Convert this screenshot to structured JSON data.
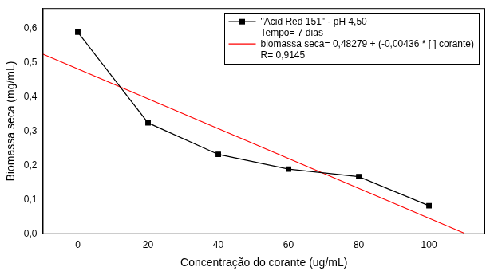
{
  "chart_data": {
    "type": "line",
    "x_label": "Concentração do corante (ug/mL)",
    "y_label": "Biomassa seca (mg/mL)",
    "series": [
      {
        "name": "\"Acid Red 151\" - pH 4,50",
        "color": "#000000",
        "marker": "square",
        "line_style": "solid",
        "x": [
          0,
          20,
          40,
          60,
          80,
          100
        ],
        "values": [
          0.59,
          0.325,
          0.233,
          0.19,
          0.168,
          0.083
        ]
      },
      {
        "name": "biomassa seca= 0,48279 + (-0,00436 * [ ] corante)",
        "color": "#ff0000",
        "marker": "none",
        "line_style": "solid",
        "x": [
          -10,
          110
        ],
        "values": [
          0.526,
          0.003
        ]
      }
    ],
    "annotations": [
      "Tempo= 7 dias",
      "R= 0,9145"
    ],
    "xlim": [
      -10,
      116
    ],
    "xticks": [
      0,
      20,
      40,
      60,
      80,
      100
    ],
    "ylim": [
      0,
      0.66
    ],
    "yticks": [
      {
        "value": 0,
        "label": "0,0"
      },
      {
        "value": 0.1,
        "label": "0,1"
      },
      {
        "value": 0.2,
        "label": "0,2"
      },
      {
        "value": 0.3,
        "label": "0,3"
      },
      {
        "value": 0.4,
        "label": "0,4"
      },
      {
        "value": 0.5,
        "label": "0,5"
      },
      {
        "value": 0.6,
        "label": "0,6"
      }
    ],
    "grid": false,
    "legend": "top right"
  }
}
